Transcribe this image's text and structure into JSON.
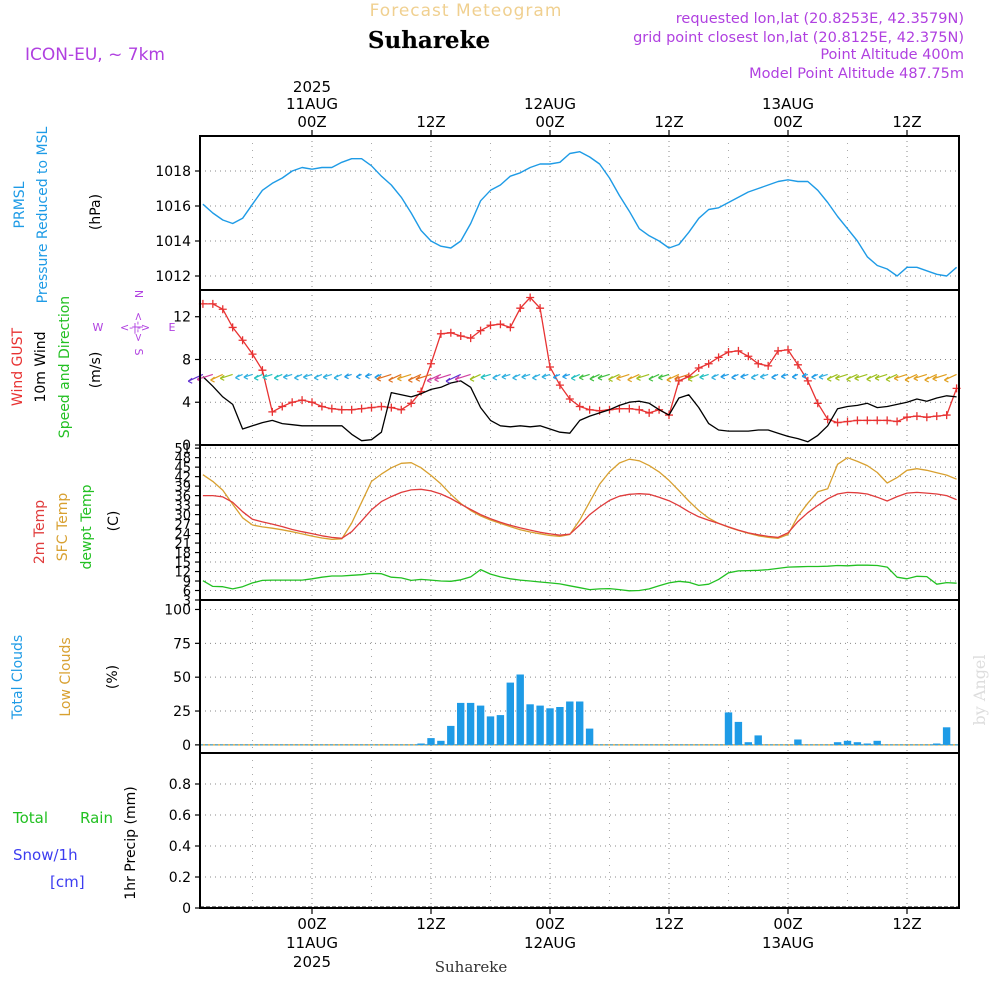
{
  "header": {
    "title": "Forecast Meteogram",
    "location": "Suhareke",
    "model": "ICON-EU, ~ 7km",
    "requested": "requested lon,lat (20.8253E, 42.3579N)",
    "grid_point": "grid point closest lon,lat (20.8125E, 42.375N)",
    "point_altitude": "Point Altitude 400m",
    "model_altitude": "Model Point Altitude 487.75m",
    "footer_location": "Suhareke",
    "credit": "by Angel",
    "year": "2025"
  },
  "time_axis": {
    "ticks": [
      {
        "t": 24,
        "hour": "00Z",
        "date": "11AUG",
        "year": "2025"
      },
      {
        "t": 36,
        "hour": "12Z",
        "date": "",
        "year": ""
      },
      {
        "t": 48,
        "hour": "00Z",
        "date": "12AUG",
        "year": ""
      },
      {
        "t": 60,
        "hour": "12Z",
        "date": "",
        "year": ""
      },
      {
        "t": 72,
        "hour": "00Z",
        "date": "13AUG",
        "year": ""
      },
      {
        "t": 84,
        "hour": "12Z",
        "date": "",
        "year": ""
      }
    ]
  },
  "panels": {
    "pressure": {
      "label1": "PRMSL",
      "label2": "Pressure Reduced to MSL",
      "unit": "(hPa)",
      "ticks": [
        "1012",
        "1014",
        "1016",
        "1018"
      ],
      "colors": {
        "line": "#1e9be6",
        "label": "#1e9be6"
      }
    },
    "wind": {
      "label_gust": "Wind GUST",
      "label_wind": "10m Wind",
      "label_dir": "Speed and Direction",
      "unit": "(m/s)",
      "ticks": [
        "0",
        "4",
        "8",
        "12"
      ],
      "compass": {
        "n": "N",
        "s": "S",
        "w": "W",
        "e": "E",
        "arrows": "<-|->"
      },
      "colors": {
        "gust": "#e83232",
        "wind": "#000000",
        "dir_label": "#22c022",
        "compass": "#b040e0"
      }
    },
    "temp": {
      "label_2m": "2m Temp",
      "label_sfc": "SFC Temp",
      "label_dew": "dewpt Temp",
      "unit": "(C)",
      "ticks": [
        "3",
        "6",
        "9",
        "12",
        "15",
        "18",
        "21",
        "24",
        "27",
        "30",
        "33",
        "36",
        "39",
        "42",
        "45",
        "48",
        "51"
      ],
      "colors": {
        "t2m": "#e03c3c",
        "sfc": "#d8a030",
        "dew": "#22c022"
      }
    },
    "clouds": {
      "label_total": "Total Clouds",
      "label_low": "Low Clouds",
      "unit": "(%)",
      "ticks": [
        "0",
        "25",
        "50",
        "75",
        "100"
      ],
      "colors": {
        "total": "#1e9be6",
        "low": "#d8a030"
      }
    },
    "precip": {
      "label_total": "Total",
      "label_rain": "Rain",
      "label_snow": "Snow/1h",
      "label_cm": "[cm]",
      "unit": "1hr Precip (mm)",
      "ticks": [
        "0",
        "0.2",
        "0.4",
        "0.6",
        "0.8"
      ],
      "colors": {
        "total": "#22c022",
        "snow": "#3c3cf0"
      }
    }
  },
  "chart_data": [
    {
      "type": "line",
      "title": "PRMSL Pressure Reduced to MSL",
      "ylabel": "(hPa)",
      "ylim": [
        1011.2,
        1020.0
      ],
      "x_unit": "hours from 10AUG 00Z",
      "x": [
        13,
        14,
        15,
        16,
        17,
        18,
        19,
        20,
        21,
        22,
        23,
        24,
        25,
        26,
        27,
        28,
        29,
        30,
        31,
        32,
        33,
        34,
        35,
        36,
        37,
        38,
        39,
        40,
        41,
        42,
        43,
        44,
        45,
        46,
        47,
        48,
        49,
        50,
        51,
        52,
        53,
        54,
        55,
        56,
        57,
        58,
        59,
        60,
        61,
        62,
        63,
        64,
        65,
        66,
        67,
        68,
        69,
        70,
        71,
        72,
        73,
        74,
        75,
        76,
        77,
        78,
        79,
        80,
        81,
        82,
        83,
        84,
        85,
        86,
        87,
        88,
        89
      ],
      "series": [
        {
          "name": "PRMSL",
          "values": [
            1016.1,
            1015.6,
            1015.2,
            1015.0,
            1015.3,
            1016.1,
            1016.9,
            1017.3,
            1017.6,
            1018.0,
            1018.2,
            1018.1,
            1018.2,
            1018.2,
            1018.5,
            1018.7,
            1018.7,
            1018.3,
            1017.7,
            1017.2,
            1016.5,
            1015.6,
            1014.6,
            1014.0,
            1013.7,
            1013.6,
            1014.0,
            1015.0,
            1016.3,
            1016.9,
            1017.2,
            1017.7,
            1017.9,
            1018.2,
            1018.4,
            1018.4,
            1018.5,
            1019.0,
            1019.1,
            1018.8,
            1018.4,
            1017.6,
            1016.6,
            1015.7,
            1014.7,
            1014.3,
            1014.0,
            1013.6,
            1013.8,
            1014.5,
            1015.3,
            1015.8,
            1015.9,
            1016.2,
            1016.5,
            1016.8,
            1017.0,
            1017.2,
            1017.4,
            1017.5,
            1017.4,
            1017.4,
            1016.9,
            1016.2,
            1015.4,
            1014.7,
            1014.0,
            1013.1,
            1012.6,
            1012.4,
            1012.0,
            1012.5,
            1012.5,
            1012.3,
            1012.1,
            1012.0,
            1012.5
          ]
        }
      ]
    },
    {
      "type": "line",
      "title": "Wind GUST / 10m Wind Speed and Direction",
      "ylabel": "(m/s)",
      "ylim": [
        0,
        14.5
      ],
      "x_unit": "hours from 10AUG 00Z",
      "x": [
        13,
        14,
        15,
        16,
        17,
        18,
        19,
        20,
        21,
        22,
        23,
        24,
        25,
        26,
        27,
        28,
        29,
        30,
        31,
        32,
        33,
        34,
        35,
        36,
        37,
        38,
        39,
        40,
        41,
        42,
        43,
        44,
        45,
        46,
        47,
        48,
        49,
        50,
        51,
        52,
        53,
        54,
        55,
        56,
        57,
        58,
        59,
        60,
        61,
        62,
        63,
        64,
        65,
        66,
        67,
        68,
        69,
        70,
        71,
        72,
        73,
        74,
        75,
        76,
        77,
        78,
        79,
        80,
        81,
        82,
        83,
        84,
        85,
        86,
        87,
        88,
        89
      ],
      "series": [
        {
          "name": "Wind GUST",
          "values": [
            13.2,
            13.2,
            12.7,
            11.0,
            9.8,
            8.5,
            7.0,
            3.1,
            3.6,
            4.0,
            4.2,
            4.0,
            3.6,
            3.4,
            3.3,
            3.3,
            3.4,
            3.5,
            3.6,
            3.5,
            3.3,
            3.9,
            5.0,
            7.6,
            10.4,
            10.5,
            10.2,
            10.0,
            10.7,
            11.2,
            11.3,
            11.0,
            12.8,
            13.8,
            12.8,
            7.3,
            5.6,
            4.3,
            3.6,
            3.3,
            3.2,
            3.3,
            3.4,
            3.4,
            3.3,
            3.0,
            3.3,
            2.8,
            6.0,
            6.4,
            7.2,
            7.6,
            8.2,
            8.7,
            8.8,
            8.3,
            7.6,
            7.4,
            8.8,
            8.9,
            7.5,
            6.0,
            3.9,
            2.4,
            2.1,
            2.2,
            2.3,
            2.3,
            2.3,
            2.3,
            2.2,
            2.6,
            2.7,
            2.6,
            2.7,
            2.8,
            5.3
          ]
        },
        {
          "name": "10m Wind",
          "values": [
            6.4,
            5.5,
            4.5,
            3.8,
            1.5,
            1.8,
            2.1,
            2.3,
            2.0,
            1.9,
            1.8,
            1.8,
            1.8,
            1.8,
            1.8,
            1.0,
            0.4,
            0.5,
            1.2,
            4.9,
            4.7,
            4.5,
            4.8,
            5.2,
            5.4,
            5.8,
            6.0,
            5.4,
            3.5,
            2.3,
            1.8,
            1.7,
            1.8,
            1.7,
            1.8,
            1.5,
            1.2,
            1.1,
            2.3,
            2.7,
            3.0,
            3.3,
            3.7,
            4.0,
            4.1,
            3.9,
            3.3,
            2.8,
            4.4,
            4.7,
            3.5,
            2.0,
            1.4,
            1.3,
            1.3,
            1.3,
            1.4,
            1.4,
            1.1,
            0.8,
            0.6,
            0.3,
            0.9,
            1.8,
            3.4,
            3.6,
            3.7,
            3.9,
            3.5,
            3.6,
            3.8,
            4.0,
            4.3,
            4.1,
            4.4,
            4.6,
            4.5
          ]
        }
      ]
    },
    {
      "type": "line",
      "title": "2m Temp / SFC Temp / dewpt Temp",
      "ylabel": "(C)",
      "ylim": [
        3,
        52
      ],
      "x_unit": "hours from 10AUG 00Z",
      "x": [
        13,
        14,
        15,
        16,
        17,
        18,
        19,
        20,
        21,
        22,
        23,
        24,
        25,
        26,
        27,
        28,
        29,
        30,
        31,
        32,
        33,
        34,
        35,
        36,
        37,
        38,
        39,
        40,
        41,
        42,
        43,
        44,
        45,
        46,
        47,
        48,
        49,
        50,
        51,
        52,
        53,
        54,
        55,
        56,
        57,
        58,
        59,
        60,
        61,
        62,
        63,
        64,
        65,
        66,
        67,
        68,
        69,
        70,
        71,
        72,
        73,
        74,
        75,
        76,
        77,
        78,
        79,
        80,
        81,
        82,
        83,
        84,
        85,
        86,
        87,
        88,
        89
      ],
      "series": [
        {
          "name": "2m Temp",
          "values": [
            36.0,
            36.0,
            35.6,
            33.9,
            30.9,
            28.5,
            27.7,
            27.0,
            26.2,
            25.3,
            24.6,
            24.0,
            23.3,
            22.8,
            22.5,
            24.6,
            28.0,
            31.5,
            34.1,
            35.7,
            37.0,
            37.8,
            38.0,
            37.5,
            36.5,
            35.1,
            33.3,
            31.6,
            30.0,
            28.7,
            27.6,
            26.6,
            25.8,
            25.1,
            24.4,
            23.9,
            23.5,
            23.8,
            26.7,
            30.0,
            32.4,
            34.5,
            35.8,
            36.4,
            36.6,
            36.4,
            35.5,
            34.4,
            32.8,
            30.9,
            29.3,
            28.2,
            27.2,
            26.1,
            25.1,
            24.2,
            23.6,
            23.1,
            22.8,
            24.2,
            27.8,
            30.6,
            32.9,
            35.0,
            36.5,
            37.0,
            36.9,
            36.5,
            35.5,
            34.3,
            35.7,
            36.8,
            37.0,
            36.8,
            36.5,
            36.0,
            34.7
          ]
        },
        {
          "name": "SFC Temp",
          "values": [
            42.6,
            40.5,
            37.7,
            33.3,
            29.0,
            26.7,
            26.1,
            25.7,
            25.2,
            24.6,
            23.9,
            23.2,
            22.6,
            22.2,
            22.3,
            27.3,
            33.9,
            40.5,
            42.8,
            44.8,
            46.2,
            46.4,
            44.8,
            42.4,
            39.7,
            36.4,
            33.5,
            31.3,
            29.6,
            28.3,
            27.2,
            26.2,
            25.2,
            24.5,
            23.9,
            23.4,
            23.1,
            23.7,
            28.3,
            34.0,
            39.6,
            43.5,
            46.3,
            47.5,
            47.0,
            45.5,
            43.5,
            40.8,
            37.6,
            34.3,
            31.3,
            28.9,
            27.2,
            26.0,
            25.0,
            24.1,
            23.3,
            22.8,
            22.5,
            23.7,
            29.5,
            33.6,
            37.2,
            38.2,
            45.9,
            48.0,
            46.8,
            45.5,
            43.3,
            40.0,
            41.7,
            44.0,
            44.5,
            44.0,
            43.2,
            42.5,
            41.2
          ]
        },
        {
          "name": "dewpt Temp",
          "values": [
            9.1,
            7.3,
            7.2,
            6.5,
            7.2,
            8.4,
            9.2,
            9.3,
            9.3,
            9.3,
            9.3,
            9.7,
            10.2,
            10.6,
            10.6,
            10.8,
            11.0,
            11.4,
            11.3,
            10.2,
            10.0,
            9.2,
            9.5,
            9.3,
            9.0,
            8.9,
            9.4,
            10.3,
            12.6,
            11.2,
            10.3,
            9.7,
            9.3,
            9.0,
            8.7,
            8.4,
            8.1,
            7.5,
            6.9,
            6.3,
            6.5,
            6.6,
            6.3,
            5.9,
            6.0,
            6.5,
            7.5,
            8.4,
            8.9,
            8.6,
            7.6,
            8.0,
            9.5,
            11.6,
            12.2,
            12.3,
            12.4,
            12.6,
            13.0,
            13.4,
            13.5,
            13.6,
            13.6,
            13.7,
            13.9,
            13.8,
            14.0,
            14.0,
            13.9,
            13.4,
            10.2,
            9.7,
            10.5,
            10.4,
            8.0,
            8.5,
            8.3
          ]
        }
      ]
    },
    {
      "type": "bar",
      "title": "Total Clouds / Low Clouds",
      "ylabel": "(%)",
      "ylim": [
        -6,
        107
      ],
      "x_unit": "hours from 10AUG 00Z",
      "x": [
        34,
        35,
        36,
        37,
        38,
        39,
        40,
        41,
        42,
        43,
        44,
        45,
        46,
        47,
        48,
        49,
        50,
        51,
        52,
        53,
        54,
        55,
        56,
        57,
        58,
        59,
        60,
        61,
        62,
        63,
        64,
        65,
        66,
        67,
        68,
        69,
        70,
        71,
        72,
        73,
        74,
        75,
        76,
        77,
        78,
        79,
        80,
        81,
        82,
        83,
        84,
        85,
        86,
        87,
        88
      ],
      "series": [
        {
          "name": "Total Clouds",
          "values": [
            0,
            1,
            5,
            3,
            14,
            31,
            31,
            29,
            21,
            22,
            46,
            52,
            30,
            29,
            27,
            28,
            32,
            32,
            12,
            0,
            0,
            0,
            0,
            0,
            0,
            0,
            0,
            0,
            0,
            0,
            0,
            0,
            24,
            17,
            2,
            7,
            0,
            0,
            0,
            4,
            0,
            0,
            0,
            2,
            3,
            2,
            1,
            3,
            0,
            0,
            0,
            0,
            0,
            1,
            13
          ]
        },
        {
          "name": "Low Clouds",
          "values": [
            0,
            0,
            0,
            0,
            0,
            0,
            0,
            0,
            0,
            0,
            0,
            0,
            0,
            0,
            0,
            0,
            0,
            0,
            0,
            0,
            0,
            0,
            0,
            0,
            0,
            0,
            0,
            0,
            0,
            0,
            0,
            0,
            0,
            0,
            0,
            0,
            0,
            0,
            0,
            0,
            0,
            0,
            0,
            0,
            0,
            0,
            0,
            0,
            0,
            0,
            0,
            0,
            0,
            0,
            0
          ]
        }
      ]
    },
    {
      "type": "line",
      "title": "1hr Precip",
      "ylabel": "1hr Precip (mm)",
      "ylim": [
        0,
        1.0
      ],
      "series": [
        {
          "name": "Total Rain",
          "values": [
            0
          ]
        },
        {
          "name": "Snow/1h",
          "values": [
            0
          ]
        }
      ]
    }
  ]
}
